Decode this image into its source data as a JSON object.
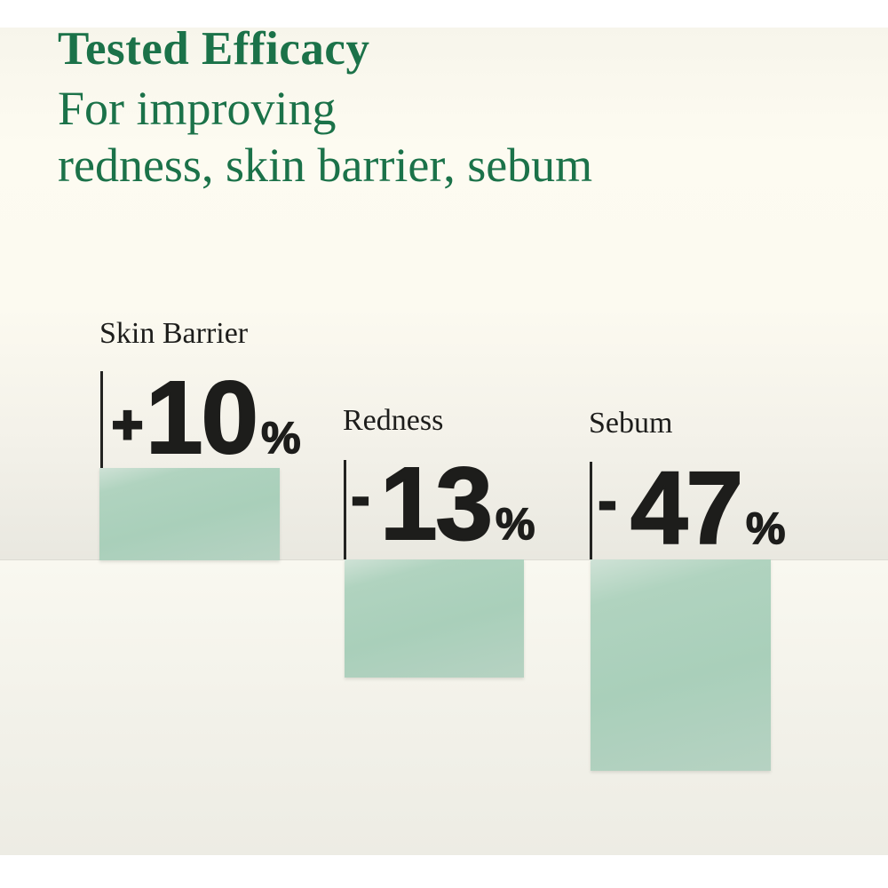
{
  "header": {
    "title": "Tested Efficacy",
    "subtitle_lines": [
      "For improving",
      "redness, skin barrier, sebum"
    ]
  },
  "metrics": [
    {
      "label": "Skin Barrier",
      "sign": "+",
      "value": "10",
      "unit": "%"
    },
    {
      "label": "Redness",
      "sign": "-",
      "value": "13",
      "unit": "%"
    },
    {
      "label": "Sebum",
      "sign": "-",
      "value": "47",
      "unit": "%"
    }
  ],
  "chart_data": {
    "type": "bar",
    "title": "Tested Efficacy",
    "subtitle": "For improving redness, skin barrier, sebum",
    "categories": [
      "Skin Barrier",
      "Redness",
      "Sebum"
    ],
    "values": [
      10,
      -13,
      -47
    ],
    "unit": "%",
    "value_labels": [
      "+10%",
      "-13%",
      "-47%"
    ],
    "legend": "none",
    "axis": "none — each category has a short vertical tick line beside its value",
    "layout_hint": "three staggered green blocks beneath each value, Sebum block deepest"
  },
  "colors": {
    "title_green": "#1b7249",
    "text_dark": "#1d1d1b",
    "bar_green": "#a9cfba",
    "bar_green_light": "#cfe2d6",
    "bg_cream": "#f7f5eb",
    "bg_cream_dark": "#e9e8e0",
    "bg_white": "#ffffff"
  }
}
